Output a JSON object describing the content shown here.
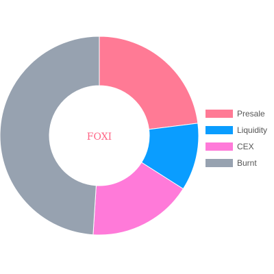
{
  "chart_data": {
    "type": "pie",
    "variant": "doughnut",
    "center_text": "FOXI",
    "center_text_color": "#ff6384",
    "categories": [
      "Presale",
      "Liquidity",
      "CEX",
      "Burnt"
    ],
    "values": [
      23,
      11,
      17,
      49
    ],
    "colors": [
      "#ff7a95",
      "#0a9dff",
      "#ff7ad9",
      "#97a2b0"
    ],
    "legend_position": "right",
    "legend": [
      {
        "label": "Presale",
        "color": "#ff7a95"
      },
      {
        "label": "Liquidity",
        "color": "#0a9dff"
      },
      {
        "label": "CEX",
        "color": "#ff7ad9"
      },
      {
        "label": "Burnt",
        "color": "#97a2b0"
      }
    ]
  }
}
